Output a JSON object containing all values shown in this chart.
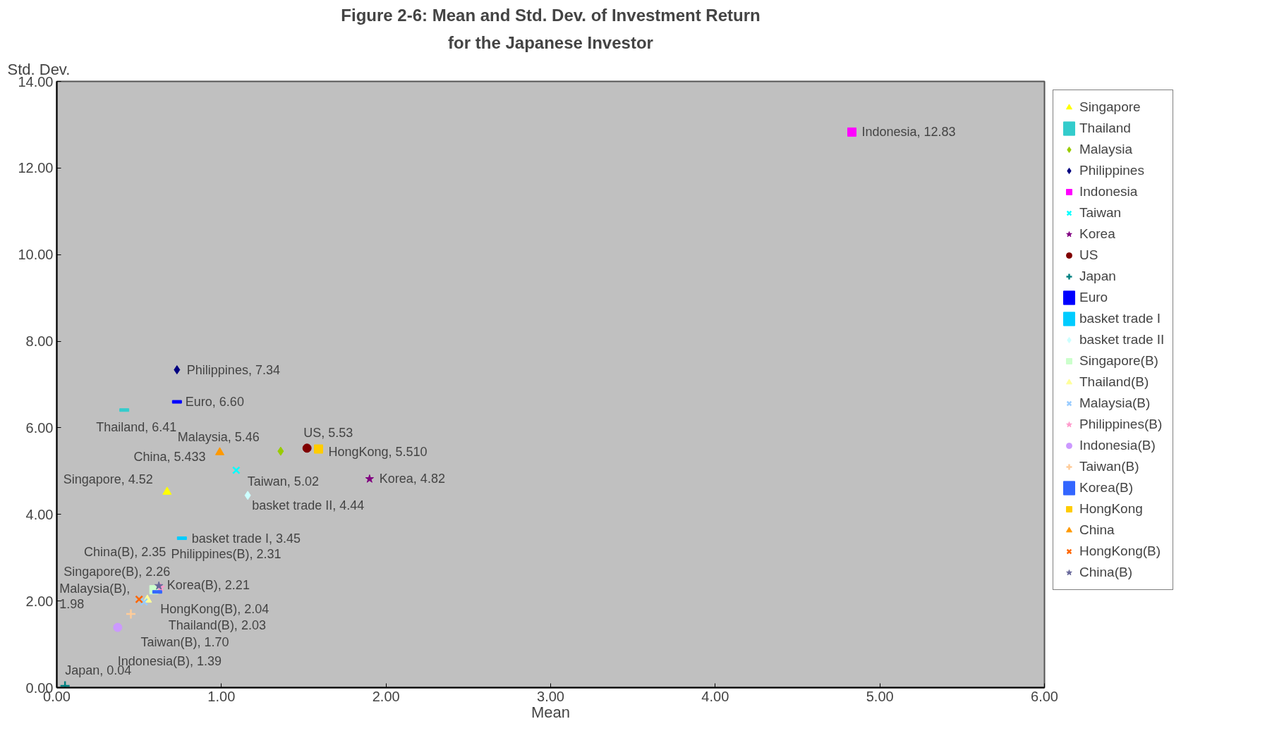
{
  "chart_data": {
    "type": "scatter",
    "title": "Figure 2-6: Mean and Std. Dev. of Investment Return",
    "subtitle": "for the Japanese Investor",
    "xlabel": "Mean",
    "ylabel": "Std. Dev.",
    "xlim": [
      0,
      6
    ],
    "ylim": [
      0,
      14
    ],
    "xticks": [
      {
        "value": 0,
        "label": "0.00"
      },
      {
        "value": 1,
        "label": "1.00"
      },
      {
        "value": 2,
        "label": "2.00"
      },
      {
        "value": 3,
        "label": "3.00"
      },
      {
        "value": 4,
        "label": "4.00"
      },
      {
        "value": 5,
        "label": "5.00"
      },
      {
        "value": 6,
        "label": "6.00"
      }
    ],
    "yticks": [
      {
        "value": 0,
        "label": "0.00"
      },
      {
        "value": 2,
        "label": "2.00"
      },
      {
        "value": 4,
        "label": "4.00"
      },
      {
        "value": 6,
        "label": "6.00"
      },
      {
        "value": 8,
        "label": "8.00"
      },
      {
        "value": 10,
        "label": "10.00"
      },
      {
        "value": 12,
        "label": "12.00"
      },
      {
        "value": 14,
        "label": "14.00"
      }
    ],
    "grid": false,
    "legend": "right",
    "series": [
      {
        "name": "Singapore",
        "color": "#ffff00",
        "marker": "triangle",
        "x": [
          0.67
        ],
        "values": [
          4.52
        ]
      },
      {
        "name": "Thailand",
        "color": "#33cccc",
        "x": [
          0.41
        ],
        "values": [
          6.41
        ]
      },
      {
        "name": "Malaysia",
        "color": "#99cc00",
        "marker": "diamond",
        "x": [
          1.36
        ],
        "values": [
          5.46
        ]
      },
      {
        "name": "Philippines",
        "color": "#000080",
        "marker": "diamond",
        "x": [
          0.73
        ],
        "values": [
          7.34
        ]
      },
      {
        "name": "Indonesia",
        "color": "#ff00ff",
        "marker": "square",
        "x": [
          4.83
        ],
        "values": [
          12.83
        ]
      },
      {
        "name": "Taiwan",
        "color": "#00ffff",
        "marker": "x",
        "x": [
          1.09
        ],
        "values": [
          5.02
        ]
      },
      {
        "name": "Korea",
        "color": "#800080",
        "marker": "star",
        "x": [
          1.9
        ],
        "values": [
          4.82
        ]
      },
      {
        "name": "US",
        "color": "#800000",
        "marker": "circle",
        "x": [
          1.52
        ],
        "values": [
          5.53
        ]
      },
      {
        "name": "Japan",
        "color": "#008080",
        "marker": "cross",
        "x": [
          0.05
        ],
        "values": [
          0.04
        ]
      },
      {
        "name": "Euro",
        "color": "#0000ff",
        "x": [
          0.73
        ],
        "values": [
          6.6
        ]
      },
      {
        "name": "basket trade I",
        "color": "#00ccff",
        "x": [
          0.76
        ],
        "values": [
          3.45
        ]
      },
      {
        "name": "basket trade II",
        "color": "#ccffff",
        "marker": "diamond",
        "x": [
          1.16
        ],
        "values": [
          4.44
        ]
      },
      {
        "name": "Singapore(B)",
        "color": "#ccffcc",
        "marker": "square",
        "x": [
          0.59
        ],
        "values": [
          2.26
        ]
      },
      {
        "name": "Thailand(B)",
        "color": "#ffff99",
        "marker": "triangle",
        "x": [
          0.55
        ],
        "values": [
          2.03
        ]
      },
      {
        "name": "Malaysia(B)",
        "color": "#99ccff",
        "marker": "x",
        "x": [
          0.53
        ],
        "values": [
          1.98
        ]
      },
      {
        "name": "Philippines(B)",
        "color": "#ff99cc",
        "marker": "star",
        "x": [
          0.63
        ],
        "values": [
          2.31
        ]
      },
      {
        "name": "Indonesia(B)",
        "color": "#cc99ff",
        "marker": "circle",
        "x": [
          0.37
        ],
        "values": [
          1.39
        ]
      },
      {
        "name": "Taiwan(B)",
        "color": "#ffcc99",
        "marker": "cross",
        "x": [
          0.45
        ],
        "values": [
          1.7
        ]
      },
      {
        "name": "Korea(B)",
        "color": "#3366ff",
        "x": [
          0.61
        ],
        "values": [
          2.21
        ]
      },
      {
        "name": "HongKong",
        "color": "#ffcc00",
        "marker": "square",
        "x": [
          1.59
        ],
        "values": [
          5.51
        ]
      },
      {
        "name": "China",
        "color": "#ff9900",
        "marker": "triangle",
        "x": [
          0.99
        ],
        "values": [
          5.433
        ]
      },
      {
        "name": "HongKong(B)",
        "color": "#ff6600",
        "marker": "x",
        "x": [
          0.5
        ],
        "values": [
          2.04
        ]
      },
      {
        "name": "China(B)",
        "color": "#666699",
        "marker": "star",
        "x": [
          0.62
        ],
        "values": [
          2.35
        ]
      }
    ],
    "annotations": [
      {
        "text": "Singapore, 4.52",
        "x": 0.67,
        "y": 4.52
      },
      {
        "text": "Thailand, 6.41",
        "x": 0.41,
        "y": 6.41
      },
      {
        "text": "Malaysia, 5.46",
        "x": 1.36,
        "y": 5.46
      },
      {
        "text": "Philippines, 7.34",
        "x": 0.73,
        "y": 7.34
      },
      {
        "text": "Indonesia, 12.83",
        "x": 4.83,
        "y": 12.83
      },
      {
        "text": "Taiwan, 5.02",
        "x": 1.09,
        "y": 5.02
      },
      {
        "text": "Korea, 4.82",
        "x": 1.9,
        "y": 4.82
      },
      {
        "text": "US, 5.53",
        "x": 1.52,
        "y": 5.53
      },
      {
        "text": "Japan, 0.04",
        "x": 0.05,
        "y": 0.04
      },
      {
        "text": "Euro, 6.60",
        "x": 0.73,
        "y": 6.6
      },
      {
        "text": "basket trade I, 3.45",
        "x": 0.76,
        "y": 3.45
      },
      {
        "text": "basket trade II, 4.44",
        "x": 1.16,
        "y": 4.44
      },
      {
        "text": "Singapore(B), 2.26",
        "x": 0.59,
        "y": 2.26
      },
      {
        "text": "Thailand(B), 2.03",
        "x": 0.55,
        "y": 2.03
      },
      {
        "text": "Malaysia(B), 1.98",
        "x": 0.53,
        "y": 1.98
      },
      {
        "text": "Philippines(B), 2.31",
        "x": 0.63,
        "y": 2.31
      },
      {
        "text": "Indonesia(B), 1.39",
        "x": 0.37,
        "y": 1.39
      },
      {
        "text": "Taiwan(B), 1.70",
        "x": 0.45,
        "y": 1.7
      },
      {
        "text": "Korea(B), 2.21",
        "x": 0.61,
        "y": 2.21
      },
      {
        "text": "HongKong, 5.510",
        "x": 1.59,
        "y": 5.51
      },
      {
        "text": "China, 5.433",
        "x": 0.99,
        "y": 5.433
      },
      {
        "text": "HongKong(B), 2.04",
        "x": 0.5,
        "y": 2.04
      },
      {
        "text": "China(B), 2.35",
        "x": 0.62,
        "y": 2.35
      }
    ]
  }
}
